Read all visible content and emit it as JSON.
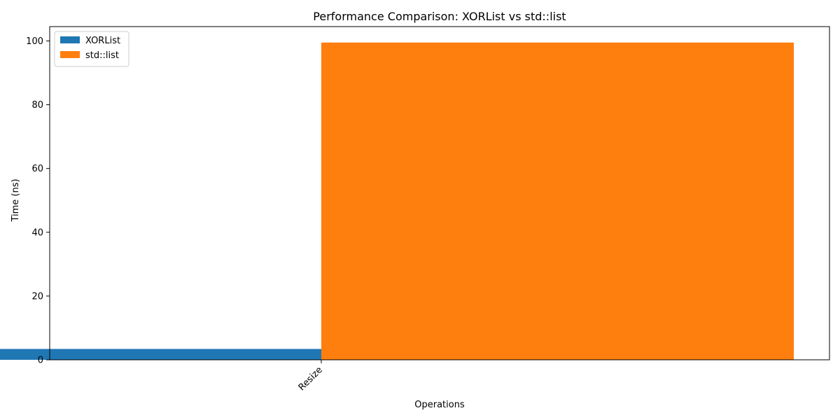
{
  "chart_data": {
    "type": "bar",
    "title": "Performance Comparison: XORList vs std::list",
    "xlabel": "Operations",
    "ylabel": "Time (ns)",
    "categories": [
      "Resize"
    ],
    "series": [
      {
        "name": "XORList",
        "values": [
          3.4
        ],
        "color": "#1f77b4"
      },
      {
        "name": "std::list",
        "values": [
          99.5
        ],
        "color": "#ff7f0e"
      }
    ],
    "ylim": [
      0,
      104.5
    ],
    "yticks": [
      0,
      20,
      40,
      60,
      80,
      100
    ],
    "grid": false,
    "legend": "top-left"
  }
}
